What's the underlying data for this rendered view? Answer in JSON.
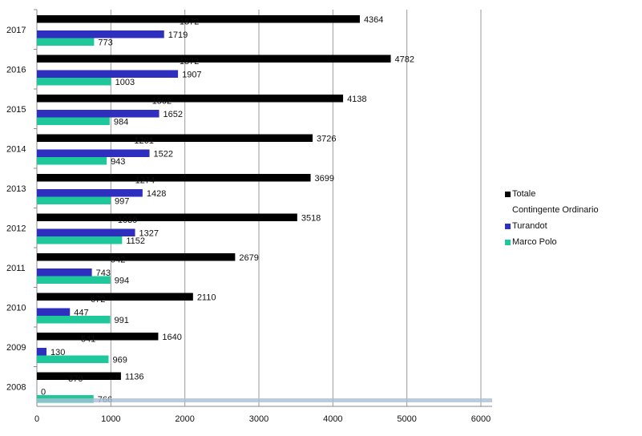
{
  "chart_data": {
    "type": "bar",
    "orientation": "horizontal",
    "title": "",
    "xlabel": "",
    "ylabel": "",
    "categories": [
      "2017",
      "2016",
      "2015",
      "2014",
      "2013",
      "2012",
      "2011",
      "2010",
      "2009",
      "2008"
    ],
    "xlim": [
      0,
      6000
    ],
    "xticks": [
      "0",
      "1000",
      "2000",
      "3000",
      "4000",
      "5000",
      "6000"
    ],
    "grid": "vertical",
    "legend_position": "right",
    "series": [
      {
        "name": "Totale",
        "color": "#000000",
        "visible": true,
        "values": [
          4364,
          4782,
          4138,
          3726,
          3699,
          3518,
          2679,
          2110,
          1640,
          1136
        ]
      },
      {
        "name": "Contingente Ordinario",
        "color": "#ffffff",
        "visible": false,
        "values": [
          1872,
          1872,
          1502,
          1261,
          1274,
          1039,
          942,
          672,
          541,
          370
        ]
      },
      {
        "name": "Turandot",
        "color": "#2e2ebf",
        "visible": true,
        "values": [
          1719,
          1907,
          1652,
          1522,
          1428,
          1327,
          743,
          447,
          130,
          0
        ]
      },
      {
        "name": "Marco Polo",
        "color": "#1fc89a",
        "visible": true,
        "values": [
          773,
          1003,
          984,
          943,
          997,
          1152,
          994,
          991,
          969,
          766
        ]
      }
    ]
  }
}
